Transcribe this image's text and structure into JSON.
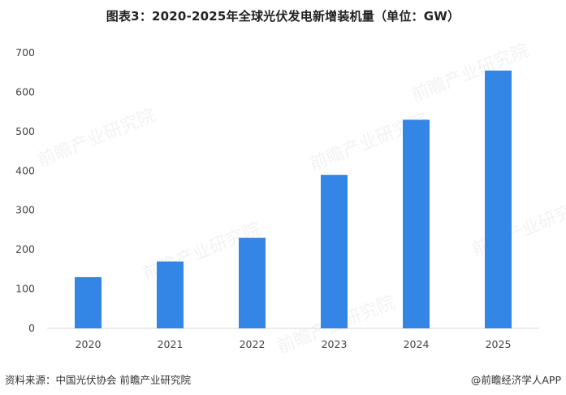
{
  "title": "图表3：2020-2025年全球光伏发电新增装机量（单位：GW）",
  "chart_data": {
    "type": "bar",
    "title": "图表3：2020-2025年全球光伏发电新增装机量（单位：GW）",
    "categories": [
      "2020",
      "2021",
      "2022",
      "2023",
      "2024",
      "2025"
    ],
    "values": [
      130,
      170,
      230,
      390,
      530,
      655
    ],
    "xlabel": "",
    "ylabel": "",
    "ylim": [
      0,
      700
    ],
    "yticks": [
      "0",
      "100",
      "200",
      "300",
      "400",
      "500",
      "600",
      "700"
    ],
    "grid": false,
    "legend": "none",
    "bar_color": "#3385E6"
  },
  "footer": {
    "source": "资料来源：中国光伏协会  前瞻产业研究院",
    "credit": "@前瞻经济学人APP"
  },
  "watermark": {
    "text": "前瞻产业研究院"
  }
}
